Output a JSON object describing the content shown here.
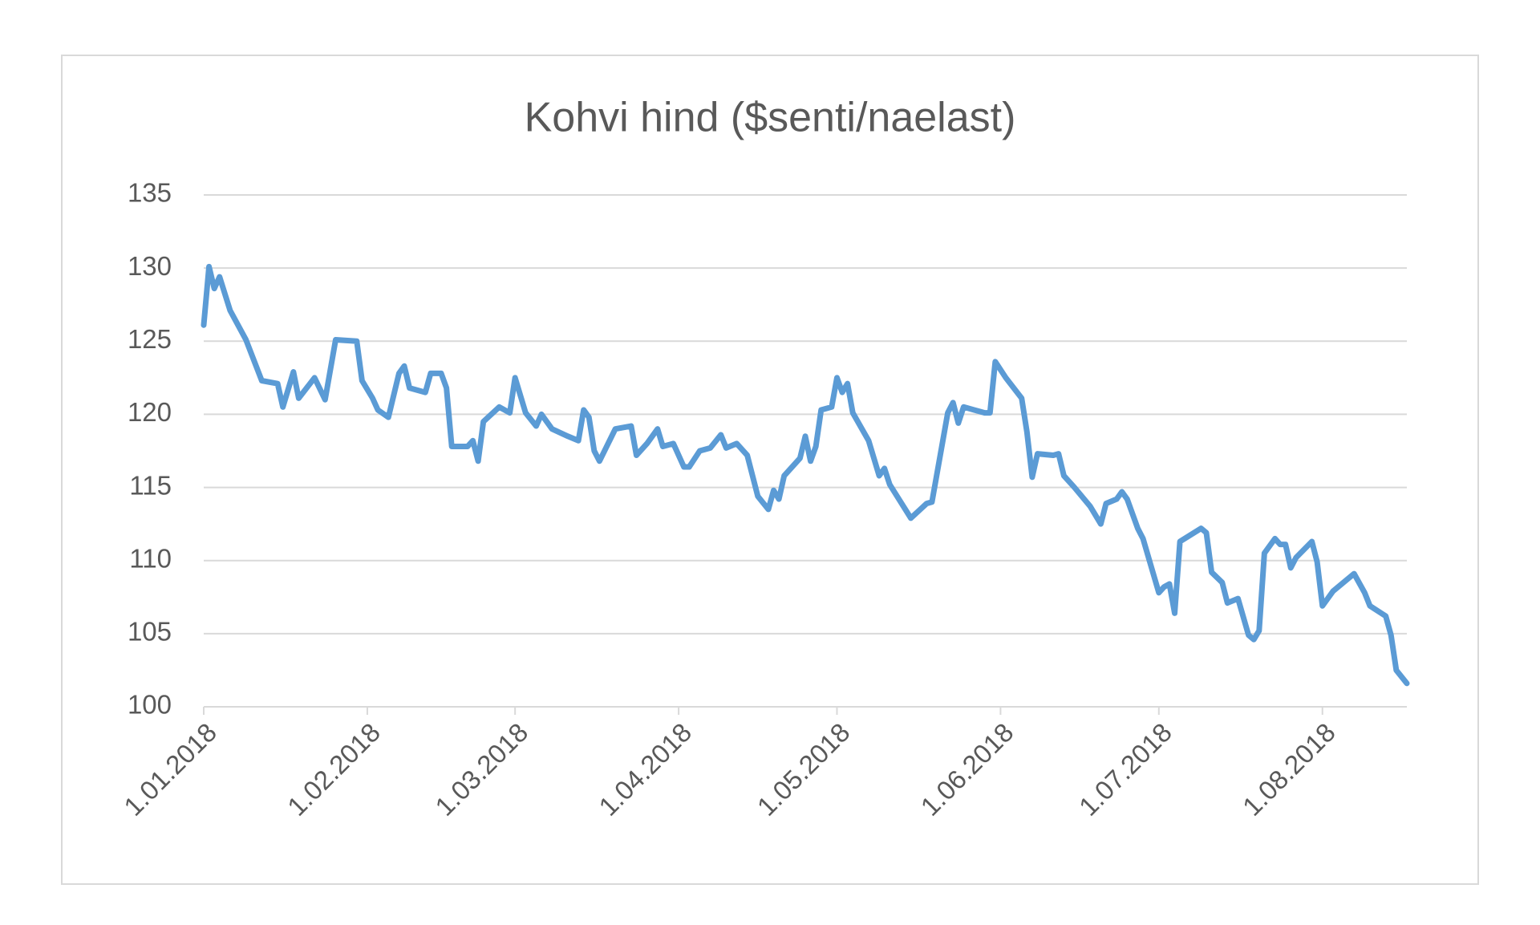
{
  "chart_data": {
    "type": "line",
    "title": "Kohvi hind ($senti/naelast)",
    "x": [
      "2018-01-01",
      "2018-01-02",
      "2018-01-03",
      "2018-01-04",
      "2018-01-06",
      "2018-01-09",
      "2018-01-12",
      "2018-01-15",
      "2018-01-16",
      "2018-01-18",
      "2018-01-19",
      "2018-01-22",
      "2018-01-24",
      "2018-01-26",
      "2018-01-30",
      "2018-01-31",
      "2018-02-02",
      "2018-02-03",
      "2018-02-05",
      "2018-02-07",
      "2018-02-08",
      "2018-02-09",
      "2018-02-12",
      "2018-02-13",
      "2018-02-15",
      "2018-02-16",
      "2018-02-17",
      "2018-02-20",
      "2018-02-21",
      "2018-02-22",
      "2018-02-23",
      "2018-02-26",
      "2018-02-28",
      "2018-03-01",
      "2018-03-03",
      "2018-03-05",
      "2018-03-06",
      "2018-03-08",
      "2018-03-11",
      "2018-03-13",
      "2018-03-14",
      "2018-03-15",
      "2018-03-16",
      "2018-03-17",
      "2018-03-20",
      "2018-03-23",
      "2018-03-24",
      "2018-03-26",
      "2018-03-28",
      "2018-03-29",
      "2018-03-31",
      "2018-04-02",
      "2018-04-03",
      "2018-04-05",
      "2018-04-07",
      "2018-04-09",
      "2018-04-10",
      "2018-04-12",
      "2018-04-14",
      "2018-04-16",
      "2018-04-18",
      "2018-04-19",
      "2018-04-20",
      "2018-04-21",
      "2018-04-24",
      "2018-04-25",
      "2018-04-26",
      "2018-04-27",
      "2018-04-28",
      "2018-04-30",
      "2018-05-01",
      "2018-05-02",
      "2018-05-03",
      "2018-05-04",
      "2018-05-07",
      "2018-05-09",
      "2018-05-10",
      "2018-05-11",
      "2018-05-15",
      "2018-05-18",
      "2018-05-19",
      "2018-05-22",
      "2018-05-23",
      "2018-05-24",
      "2018-05-25",
      "2018-05-27",
      "2018-05-29",
      "2018-05-30",
      "2018-05-31",
      "2018-06-02",
      "2018-06-05",
      "2018-06-06",
      "2018-06-07",
      "2018-06-08",
      "2018-06-11",
      "2018-06-12",
      "2018-06-13",
      "2018-06-15",
      "2018-06-18",
      "2018-06-20",
      "2018-06-21",
      "2018-06-23",
      "2018-06-24",
      "2018-06-25",
      "2018-06-27",
      "2018-06-28",
      "2018-07-01",
      "2018-07-02",
      "2018-07-03",
      "2018-07-04",
      "2018-07-05",
      "2018-07-09",
      "2018-07-10",
      "2018-07-11",
      "2018-07-13",
      "2018-07-14",
      "2018-07-16",
      "2018-07-18",
      "2018-07-19",
      "2018-07-20",
      "2018-07-21",
      "2018-07-23",
      "2018-07-24",
      "2018-07-25",
      "2018-07-26",
      "2018-07-27",
      "2018-07-30",
      "2018-07-31",
      "2018-08-01",
      "2018-08-03",
      "2018-08-07",
      "2018-08-09",
      "2018-08-10",
      "2018-08-13",
      "2018-08-14",
      "2018-08-15",
      "2018-08-17"
    ],
    "series": [
      {
        "name": "Kohvi hind",
        "color": "#5b9bd5",
        "values": [
          126.1,
          130.1,
          128.6,
          129.4,
          127.1,
          125.1,
          122.3,
          122.1,
          120.5,
          122.9,
          121.1,
          122.5,
          121.0,
          125.1,
          125.0,
          122.3,
          121.1,
          120.3,
          119.8,
          122.8,
          123.3,
          121.8,
          121.5,
          122.8,
          122.8,
          121.8,
          117.8,
          117.8,
          118.2,
          116.8,
          119.5,
          120.5,
          120.1,
          122.5,
          120.1,
          119.2,
          120.0,
          119.0,
          118.5,
          118.2,
          120.3,
          119.8,
          117.5,
          116.8,
          119.0,
          119.2,
          117.2,
          118.0,
          119.0,
          117.8,
          118.0,
          116.4,
          116.4,
          117.5,
          117.7,
          118.6,
          117.7,
          118.0,
          117.2,
          114.4,
          113.5,
          114.8,
          114.2,
          115.8,
          117.0,
          118.5,
          116.8,
          117.8,
          120.3,
          120.5,
          122.5,
          121.5,
          122.1,
          120.1,
          118.2,
          115.8,
          116.3,
          115.2,
          112.9,
          113.9,
          114.0,
          120.1,
          120.8,
          119.4,
          120.5,
          120.3,
          120.1,
          120.1,
          123.6,
          122.5,
          121.1,
          118.8,
          115.7,
          117.3,
          117.2,
          117.3,
          115.8,
          115.0,
          113.7,
          112.5,
          113.9,
          114.2,
          114.7,
          114.2,
          112.2,
          111.5,
          107.8,
          108.2,
          108.4,
          106.4,
          111.3,
          112.2,
          111.9,
          109.2,
          108.5,
          107.1,
          107.4,
          104.9,
          104.6,
          105.2,
          110.5,
          111.5,
          111.1,
          111.1,
          109.5,
          110.2,
          111.3,
          109.9,
          106.9,
          107.9,
          109.1,
          107.8,
          106.9,
          106.2,
          104.9,
          102.5,
          101.6
        ]
      }
    ],
    "xlim": [
      "2018-01-01",
      "2018-08-17"
    ],
    "xticks": [
      {
        "value": "2018-01-01",
        "label": "1.01.2018"
      },
      {
        "value": "2018-02-01",
        "label": "1.02.2018"
      },
      {
        "value": "2018-03-01",
        "label": "1.03.2018"
      },
      {
        "value": "2018-04-01",
        "label": "1.04.2018"
      },
      {
        "value": "2018-05-01",
        "label": "1.05.2018"
      },
      {
        "value": "2018-06-01",
        "label": "1.06.2018"
      },
      {
        "value": "2018-07-01",
        "label": "1.07.2018"
      },
      {
        "value": "2018-08-01",
        "label": "1.08.2018"
      }
    ],
    "ylim": [
      100,
      135
    ],
    "yticks": [
      100,
      105,
      110,
      115,
      120,
      125,
      130,
      135
    ],
    "grid": true
  }
}
